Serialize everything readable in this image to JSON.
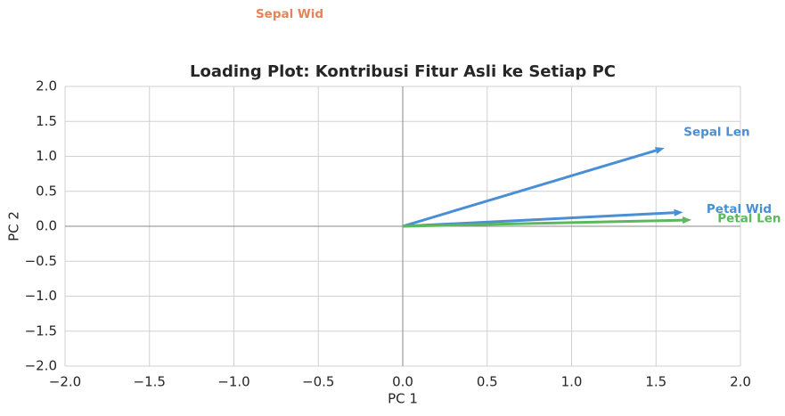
{
  "chart_data": {
    "type": "loading",
    "title": "Loading Plot: Kontribusi Fitur Asli ke Setiap PC",
    "xlabel": "PC 1",
    "ylabel": "PC 2",
    "xlim": [
      -2,
      2
    ],
    "ylim": [
      -2,
      2
    ],
    "xticks": [
      {
        "value": -2,
        "label": "−2.0"
      },
      {
        "value": -1.5,
        "label": "−1.5"
      },
      {
        "value": -1,
        "label": "−1.0"
      },
      {
        "value": -0.5,
        "label": "−0.5"
      },
      {
        "value": 0,
        "label": "0.0"
      },
      0.5,
      {
        "value": 1,
        "label": "1.0"
      },
      1.5,
      {
        "value": 2,
        "label": "2.0"
      }
    ],
    "yticks": [
      {
        "value": -2,
        "label": "−2.0"
      },
      {
        "value": -1.5,
        "label": "−1.5"
      },
      {
        "value": -1,
        "label": "−1.0"
      },
      {
        "value": -0.5,
        "label": "−0.5"
      },
      {
        "value": 0,
        "label": "0.0"
      },
      0.5,
      {
        "value": 1,
        "label": "1.0"
      },
      1.5,
      {
        "value": 2,
        "label": "2.0"
      }
    ],
    "grid": true,
    "series": [
      {
        "name": "Sepal Len",
        "color": "#4a8fd4",
        "x": 1.55,
        "y": 1.12
      },
      {
        "name": "Petal Wid",
        "color": "#4a8fd4",
        "x": 1.66,
        "y": 0.2
      },
      {
        "name": "Petal Len",
        "color": "#5cb85c",
        "x": 1.71,
        "y": 0.09
      }
    ],
    "annotations": [
      {
        "text": "Sepal Wid",
        "color": "#e8825a",
        "x": -0.67,
        "y": 3.03
      }
    ]
  }
}
